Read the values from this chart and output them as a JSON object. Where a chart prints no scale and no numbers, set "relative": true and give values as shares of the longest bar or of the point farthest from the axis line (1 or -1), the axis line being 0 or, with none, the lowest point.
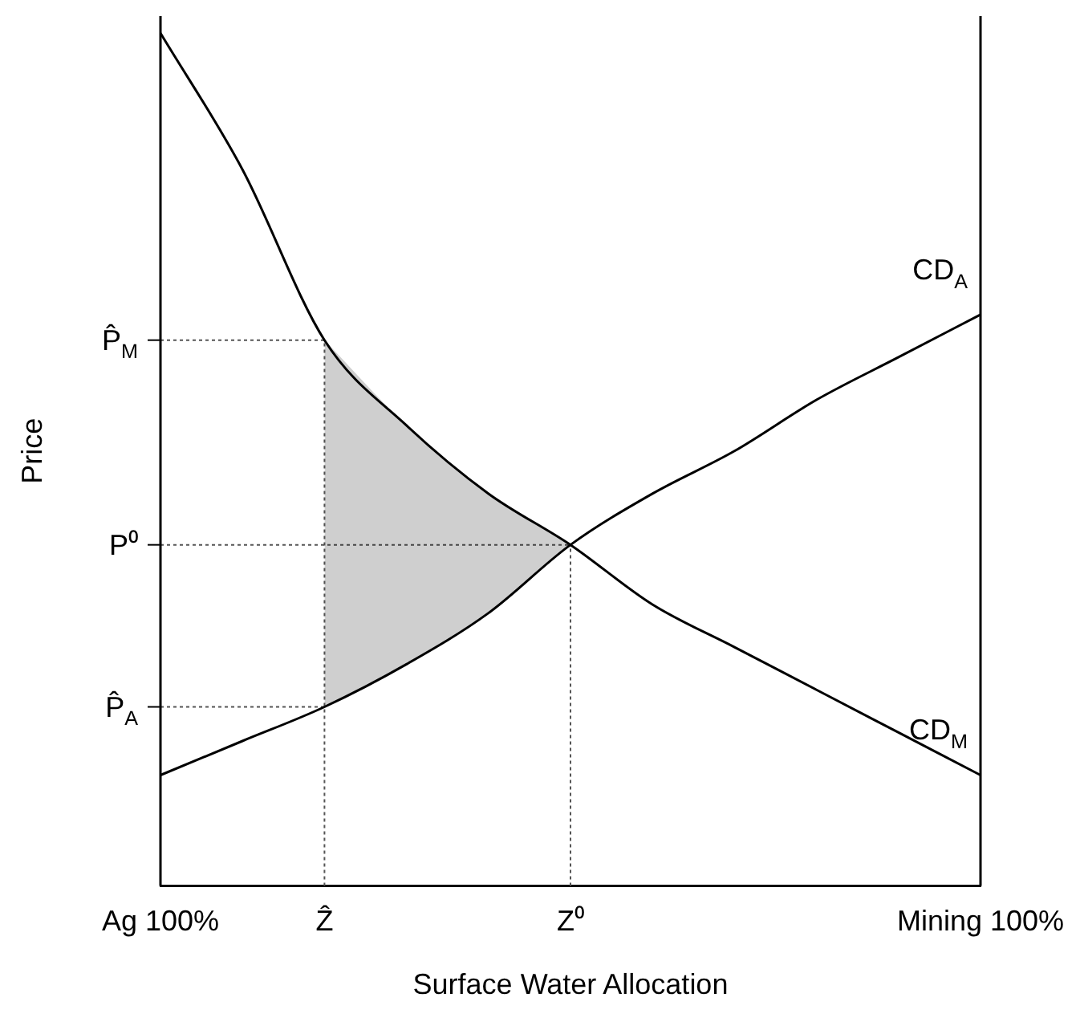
{
  "chart_data": {
    "type": "line",
    "relative": true,
    "xlabel": "Surface Water Allocation",
    "ylabel": "Price",
    "categories": [
      "Ag 100%",
      null,
      "Ẑ",
      null,
      null,
      "Z⁰",
      null,
      null,
      null,
      null,
      "Mining 100%"
    ],
    "series": [
      {
        "name": "CD$_{A}$",
        "color": "#000000",
        "values": [
          0.13,
          0.17,
          0.21,
          0.26,
          0.32,
          0.4,
          0.46,
          0.51,
          0.57,
          0.62,
          0.67
        ]
      },
      {
        "name": "CD$_{M}$",
        "color": "#000000",
        "values": [
          1,
          0.84,
          0.64,
          0.54,
          0.46,
          0.4,
          0.33,
          0.28,
          0.23,
          0.18,
          0.13
        ],
        "lower": [
          null,
          null,
          0.21,
          0.26,
          0.32,
          0.4,
          null,
          null,
          null,
          null,
          null
        ],
        "upper": [
          null,
          null,
          0.64,
          0.54,
          0.46,
          0.4,
          null,
          null,
          null,
          null,
          null
        ]
      }
    ],
    "ref_lines": [
      {
        "axis": "y",
        "value": 0.64,
        "label": "P̂$_{M}$",
        "line_style": "dotted"
      },
      {
        "axis": "y",
        "value": 0.4,
        "label": "P⁰",
        "line_style": "dotted"
      },
      {
        "axis": "y",
        "value": 0.21,
        "label": "P̂$_{A}$",
        "line_style": "dotted"
      },
      {
        "axis": "x",
        "value": "Ẑ",
        "label": null,
        "line_style": "dotted"
      },
      {
        "axis": "x",
        "value": "Z⁰",
        "label": null,
        "line_style": "dotted"
      }
    ],
    "grid": false,
    "legend": false,
    "marker": "none",
    "line_style": "solid"
  }
}
